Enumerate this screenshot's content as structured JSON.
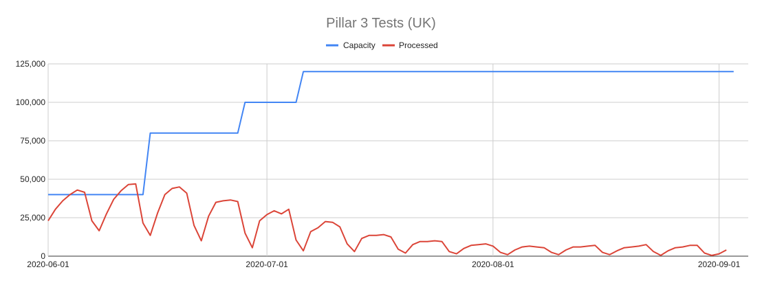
{
  "chart_data": {
    "type": "line",
    "title": "Pillar 3 Tests (UK)",
    "xlabel": "",
    "ylabel": "",
    "legend_position": "top",
    "grid": true,
    "x_range": [
      "2020-06-01",
      "2020-09-05"
    ],
    "ylim": [
      0,
      125000
    ],
    "y_ticks": [
      0,
      25000,
      50000,
      75000,
      100000,
      125000
    ],
    "y_tick_labels": [
      "0",
      "25,000",
      "50,000",
      "75,000",
      "100,000",
      "125,000"
    ],
    "x_ticks": [
      "2020-06-01",
      "2020-07-01",
      "2020-08-01",
      "2020-09-01"
    ],
    "x_tick_labels": [
      "2020-06-01",
      "2020-07-01",
      "2020-08-01",
      "2020-09-01"
    ],
    "series": [
      {
        "name": "Capacity",
        "color": "#4285f4",
        "points": [
          [
            "2020-06-01",
            40000
          ],
          [
            "2020-06-14",
            40000
          ],
          [
            "2020-06-15",
            80000
          ],
          [
            "2020-06-27",
            80000
          ],
          [
            "2020-06-28",
            100000
          ],
          [
            "2020-07-05",
            100000
          ],
          [
            "2020-07-06",
            120000
          ],
          [
            "2020-09-03",
            120000
          ]
        ]
      },
      {
        "name": "Processed",
        "color": "#db4437",
        "points": [
          [
            "2020-06-01",
            23000
          ],
          [
            "2020-06-02",
            30500
          ],
          [
            "2020-06-03",
            36000
          ],
          [
            "2020-06-04",
            40000
          ],
          [
            "2020-06-05",
            43000
          ],
          [
            "2020-06-06",
            41500
          ],
          [
            "2020-06-07",
            23000
          ],
          [
            "2020-06-08",
            16500
          ],
          [
            "2020-06-09",
            27500
          ],
          [
            "2020-06-10",
            37000
          ],
          [
            "2020-06-11",
            42500
          ],
          [
            "2020-06-12",
            46500
          ],
          [
            "2020-06-13",
            47000
          ],
          [
            "2020-06-14",
            21500
          ],
          [
            "2020-06-15",
            13500
          ],
          [
            "2020-06-16",
            28000
          ],
          [
            "2020-06-17",
            40000
          ],
          [
            "2020-06-18",
            44000
          ],
          [
            "2020-06-19",
            45000
          ],
          [
            "2020-06-20",
            41000
          ],
          [
            "2020-06-21",
            20000
          ],
          [
            "2020-06-22",
            10000
          ],
          [
            "2020-06-23",
            26000
          ],
          [
            "2020-06-24",
            35000
          ],
          [
            "2020-06-25",
            36000
          ],
          [
            "2020-06-26",
            36500
          ],
          [
            "2020-06-27",
            35500
          ],
          [
            "2020-06-28",
            15000
          ],
          [
            "2020-06-29",
            5500
          ],
          [
            "2020-06-30",
            23000
          ],
          [
            "2020-07-01",
            27000
          ],
          [
            "2020-07-02",
            29500
          ],
          [
            "2020-07-03",
            27500
          ],
          [
            "2020-07-04",
            30500
          ],
          [
            "2020-07-05",
            10500
          ],
          [
            "2020-07-06",
            3500
          ],
          [
            "2020-07-07",
            16000
          ],
          [
            "2020-07-08",
            18500
          ],
          [
            "2020-07-09",
            22500
          ],
          [
            "2020-07-10",
            22000
          ],
          [
            "2020-07-11",
            19000
          ],
          [
            "2020-07-12",
            8000
          ],
          [
            "2020-07-13",
            3000
          ],
          [
            "2020-07-14",
            11500
          ],
          [
            "2020-07-15",
            13500
          ],
          [
            "2020-07-16",
            13500
          ],
          [
            "2020-07-17",
            14000
          ],
          [
            "2020-07-18",
            12500
          ],
          [
            "2020-07-19",
            4500
          ],
          [
            "2020-07-20",
            2000
          ],
          [
            "2020-07-21",
            7500
          ],
          [
            "2020-07-22",
            9500
          ],
          [
            "2020-07-23",
            9500
          ],
          [
            "2020-07-24",
            10000
          ],
          [
            "2020-07-25",
            9500
          ],
          [
            "2020-07-26",
            3000
          ],
          [
            "2020-07-27",
            1500
          ],
          [
            "2020-07-28",
            5000
          ],
          [
            "2020-07-29",
            7000
          ],
          [
            "2020-07-30",
            7500
          ],
          [
            "2020-07-31",
            8000
          ],
          [
            "2020-08-01",
            6500
          ],
          [
            "2020-08-02",
            2500
          ],
          [
            "2020-08-03",
            1000
          ],
          [
            "2020-08-04",
            4000
          ],
          [
            "2020-08-05",
            6000
          ],
          [
            "2020-08-06",
            6500
          ],
          [
            "2020-08-07",
            6000
          ],
          [
            "2020-08-08",
            5500
          ],
          [
            "2020-08-09",
            2500
          ],
          [
            "2020-08-10",
            1000
          ],
          [
            "2020-08-11",
            4000
          ],
          [
            "2020-08-12",
            6000
          ],
          [
            "2020-08-13",
            6000
          ],
          [
            "2020-08-14",
            6500
          ],
          [
            "2020-08-15",
            7000
          ],
          [
            "2020-08-16",
            2500
          ],
          [
            "2020-08-17",
            1000
          ],
          [
            "2020-08-18",
            3500
          ],
          [
            "2020-08-19",
            5500
          ],
          [
            "2020-08-20",
            6000
          ],
          [
            "2020-08-21",
            6500
          ],
          [
            "2020-08-22",
            7500
          ],
          [
            "2020-08-23",
            3000
          ],
          [
            "2020-08-24",
            500
          ],
          [
            "2020-08-25",
            3500
          ],
          [
            "2020-08-26",
            5500
          ],
          [
            "2020-08-27",
            6000
          ],
          [
            "2020-08-28",
            7000
          ],
          [
            "2020-08-29",
            7000
          ],
          [
            "2020-08-30",
            2000
          ],
          [
            "2020-08-31",
            500
          ],
          [
            "2020-09-01",
            1500
          ],
          [
            "2020-09-02",
            4000
          ]
        ]
      }
    ]
  }
}
